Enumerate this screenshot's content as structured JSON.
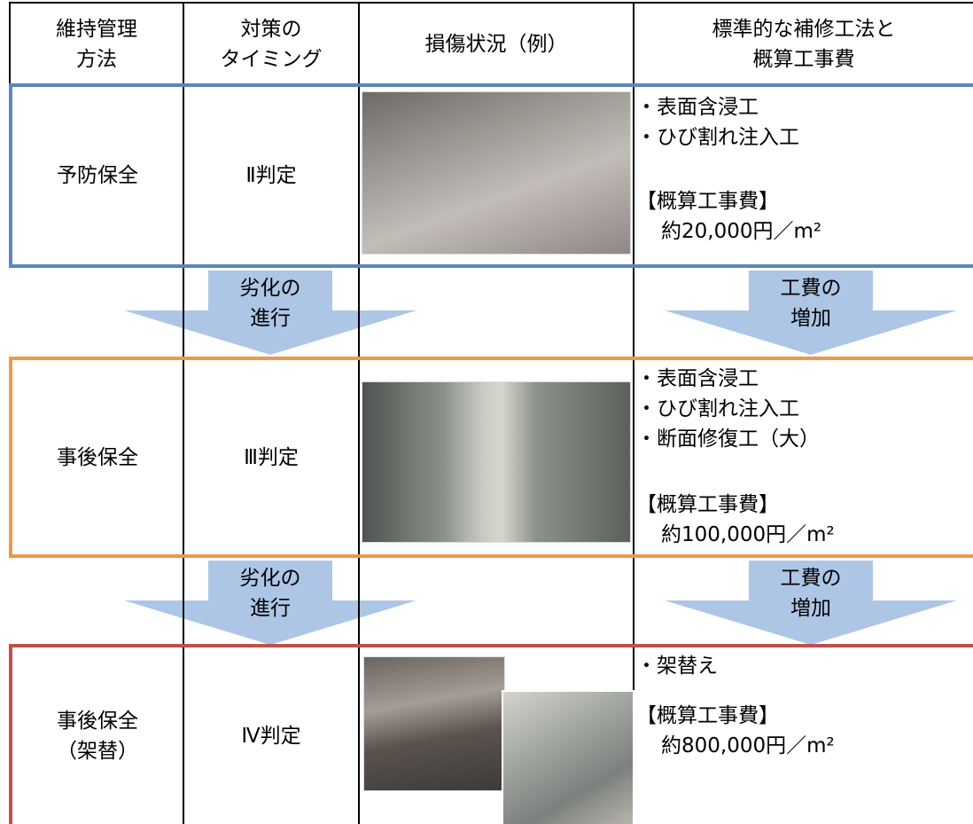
{
  "header": [
    [
      "維持管理",
      "方法"
    ],
    [
      "対策の",
      "タイミング"
    ],
    [
      "損傷状況（例）"
    ],
    [
      "標準的な補修工法と",
      "概算工事費"
    ]
  ],
  "rows": [
    {
      "method": [
        "予防保全"
      ],
      "timing": "Ⅱ判定",
      "repairs": [
        "・表面含浸工",
        "・ひび割れ注入工"
      ],
      "cost_label": "【概算工事費】",
      "cost": "約20,000円／m²"
    },
    {
      "method": [
        "事後保全"
      ],
      "timing": "Ⅲ判定",
      "repairs": [
        "・表面含浸工",
        "・ひび割れ注入工",
        "・断面修復工（大）"
      ],
      "cost_label": "【概算工事費】",
      "cost": "約100,000円／m²"
    },
    {
      "method": [
        "事後保全",
        "（架替）"
      ],
      "timing": "Ⅳ判定",
      "repairs": [
        "・架替え"
      ],
      "cost_label": "【概算工事費】",
      "cost": "約800,000円／m²"
    }
  ],
  "arrows": [
    {
      "left": [
        "劣化の",
        "進行"
      ],
      "right": [
        "工費の",
        "増加"
      ]
    },
    {
      "left": [
        "劣化の",
        "進行"
      ],
      "right": [
        "工費の",
        "増加"
      ]
    }
  ]
}
